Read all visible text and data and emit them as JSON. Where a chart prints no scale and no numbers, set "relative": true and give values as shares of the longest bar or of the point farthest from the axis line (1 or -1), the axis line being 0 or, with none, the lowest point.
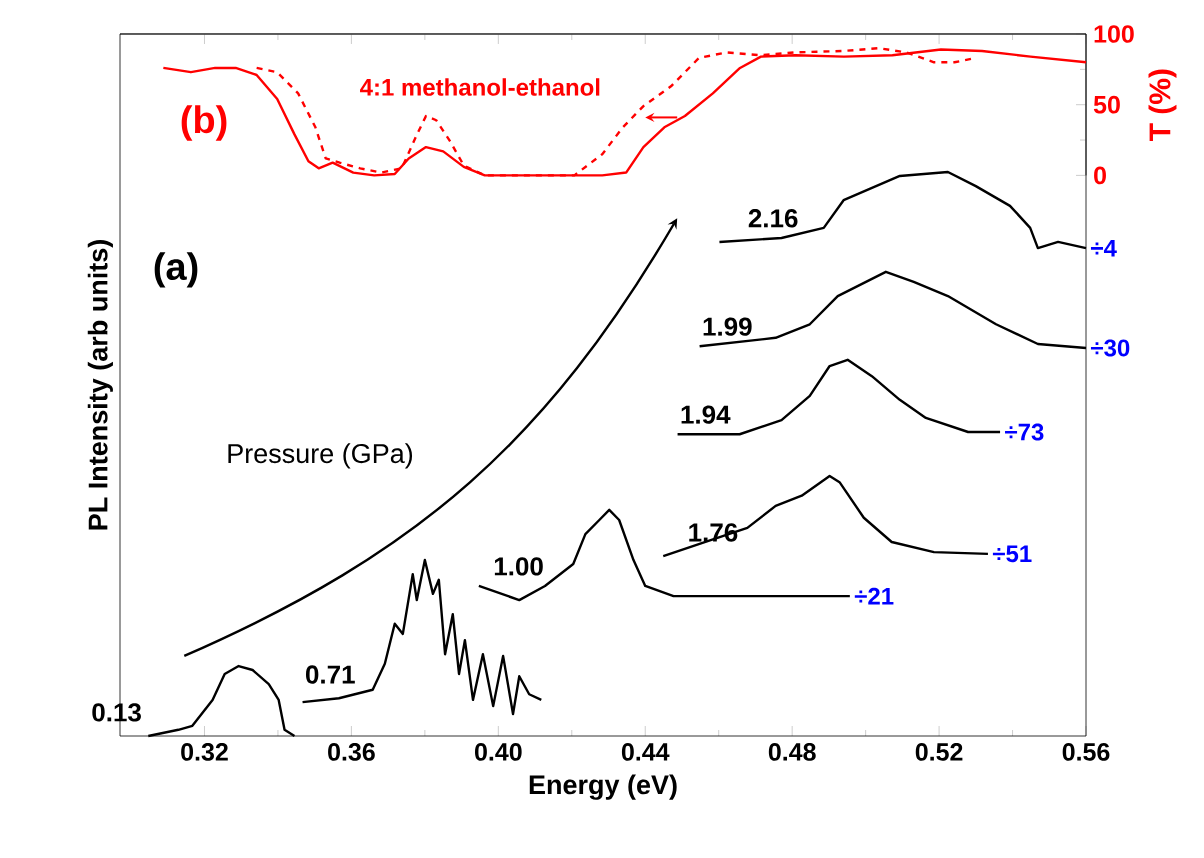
{
  "chart_data": [
    {
      "type": "line",
      "xlim": [
        0.297,
        0.56
      ],
      "xticks": [
        0.32,
        0.36,
        0.4,
        0.44,
        0.48,
        0.52,
        0.56
      ],
      "ylim": [
        0,
        100
      ],
      "yticks": [
        0,
        50,
        100
      ],
      "ylabel": "T (%)",
      "tick_labels": "y",
      "annotations": [
        "(b)"
      ],
      "series": [
        {
          "color": "#ff0000",
          "line_style": "solid",
          "x": [
            0.3088,
            0.3163,
            0.3229,
            0.3285,
            0.3342,
            0.3398,
            0.3445,
            0.3483,
            0.3511,
            0.3549,
            0.3605,
            0.3662,
            0.3718,
            0.3756,
            0.3803,
            0.385,
            0.3906,
            0.3963,
            0.4094,
            0.4283,
            0.4348,
            0.4395,
            0.4452,
            0.4508,
            0.4584,
            0.4658,
            0.4715,
            0.4809,
            0.4941,
            0.5073,
            0.5205,
            0.5317,
            0.5449,
            0.56
          ],
          "values": [
            76,
            73,
            76,
            76,
            71,
            54,
            29,
            10,
            5,
            9,
            2,
            0,
            1,
            12,
            20,
            17,
            6,
            0,
            0,
            0,
            2,
            20,
            34,
            42,
            58,
            76,
            84,
            85,
            84,
            85,
            89,
            88,
            84,
            80
          ]
        },
        {
          "name": "4:1 methanol-ethanol",
          "color": "#ff0000",
          "line_style": "dashed",
          "x": [
            0.3342,
            0.3398,
            0.3455,
            0.3502,
            0.353,
            0.3568,
            0.3624,
            0.3681,
            0.3737,
            0.3775,
            0.3803,
            0.3831,
            0.3869,
            0.3906,
            0.3963,
            0.4207,
            0.4283,
            0.4339,
            0.4395,
            0.447,
            0.4546,
            0.4621,
            0.4715,
            0.4809,
            0.4941,
            0.5035,
            0.511,
            0.5186,
            0.5242,
            0.5298
          ],
          "values": [
            76,
            73,
            58,
            34,
            12,
            9,
            5,
            2,
            5,
            27,
            42,
            39,
            24,
            7,
            0,
            0,
            15,
            34,
            49,
            63,
            83,
            87,
            85,
            87,
            88,
            90,
            87,
            80,
            80,
            83
          ]
        }
      ]
    },
    {
      "type": "line",
      "relative": true,
      "xlim": [
        0.297,
        0.56
      ],
      "xticks": [
        0.32,
        0.36,
        {
          "value": 0.4,
          "label": "0.40"
        },
        0.44,
        0.48,
        0.52,
        0.56
      ],
      "xlabel": "Energy (eV)",
      "ylabel": "PL Intensity (arb units)",
      "annotations": [
        "(a)",
        "Pressure (GPa)",
        {
          "text": "÷21",
          "x": 0.4957,
          "y": 0.248
        },
        {
          "text": "÷51",
          "x": 0.5333,
          "y": 0.323
        },
        {
          "text": "÷73",
          "x": 0.5366,
          "y": 0.539
        },
        {
          "text": "÷30",
          "x": 0.56,
          "y": 0.688
        },
        {
          "text": "÷4",
          "x": 0.56,
          "y": 0.865
        }
      ],
      "series": [
        {
          "name": "0.13",
          "color": "#000000",
          "x": [
            0.3047,
            0.3129,
            0.3167,
            0.3222,
            0.3255,
            0.3293,
            0.3331,
            0.3375,
            0.3402,
            0.3418,
            0.3445
          ],
          "values": [
            0,
            0.011,
            0.018,
            0.064,
            0.11,
            0.124,
            0.117,
            0.092,
            0.064,
            0.011,
            0
          ]
        },
        {
          "name": "0.71",
          "color": "#000000",
          "x": [
            0.3467,
            0.3566,
            0.3658,
            0.3691,
            0.3718,
            0.374,
            0.3767,
            0.3778,
            0.38,
            0.3822,
            0.3838,
            0.3855,
            0.3876,
            0.3893,
            0.3909,
            0.3931,
            0.3958,
            0.3986,
            0.4013,
            0.404,
            0.4057,
            0.4084,
            0.4117
          ],
          "values": [
            0.06,
            0.067,
            0.082,
            0.128,
            0.199,
            0.181,
            0.287,
            0.241,
            0.312,
            0.252,
            0.277,
            0.145,
            0.216,
            0.11,
            0.17,
            0.064,
            0.145,
            0.053,
            0.142,
            0.039,
            0.106,
            0.074,
            0.064
          ]
        },
        {
          "name": "1.00",
          "color": "#000000",
          "x": [
            0.3947,
            0.4057,
            0.4127,
            0.4204,
            0.4237,
            0.4275,
            0.4302,
            0.4329,
            0.4368,
            0.44,
            0.4477,
            0.4957
          ],
          "values": [
            0.266,
            0.241,
            0.266,
            0.305,
            0.358,
            0.383,
            0.401,
            0.383,
            0.312,
            0.266,
            0.248,
            0.248
          ]
        },
        {
          "name": "1.76",
          "color": "#000000",
          "x": [
            0.4449,
            0.4564,
            0.4678,
            0.4755,
            0.4826,
            0.4902,
            0.4929,
            0.4995,
            0.5071,
            0.5186,
            0.5333
          ],
          "values": [
            0.319,
            0.344,
            0.369,
            0.408,
            0.426,
            0.461,
            0.45,
            0.387,
            0.344,
            0.326,
            0.323
          ]
        },
        {
          "name": "1.94",
          "color": "#000000",
          "x": [
            0.4488,
            0.4657,
            0.4771,
            0.4848,
            0.4902,
            0.4951,
            0.5017,
            0.5093,
            0.5164,
            0.5279,
            0.5366
          ],
          "values": [
            0.535,
            0.535,
            0.56,
            0.603,
            0.656,
            0.667,
            0.638,
            0.596,
            0.564,
            0.539,
            0.539
          ]
        },
        {
          "name": "1.99",
          "color": "#000000",
          "x": [
            0.4548,
            0.4755,
            0.4848,
            0.4924,
            0.5055,
            0.5131,
            0.5224,
            0.5355,
            0.5469,
            0.56
          ],
          "values": [
            0.691,
            0.706,
            0.73,
            0.78,
            0.823,
            0.805,
            0.78,
            0.73,
            0.695,
            0.688
          ]
        },
        {
          "name": "2.16",
          "color": "#000000",
          "x": [
            0.4602,
            0.4771,
            0.4886,
            0.494,
            0.5093,
            0.5224,
            0.53,
            0.5393,
            0.5448,
            0.5469,
            0.5524,
            0.56
          ],
          "values": [
            0.876,
            0.883,
            0.901,
            0.95,
            0.993,
            1.0,
            0.975,
            0.94,
            0.901,
            0.865,
            0.876,
            0.865
          ]
        }
      ]
    }
  ]
}
